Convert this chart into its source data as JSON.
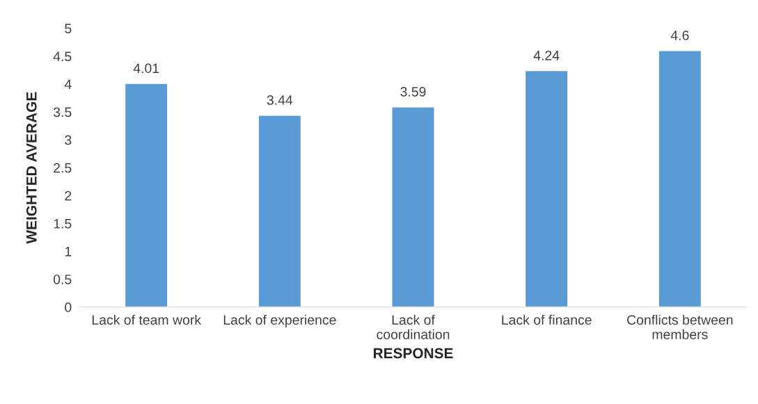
{
  "chart_data": {
    "type": "bar",
    "xlabel": "RESPONSE",
    "ylabel": "WEIGHTED AVERAGE",
    "categories": [
      "Lack of team work",
      "Lack of experience",
      "Lack of\ncoordination",
      "Lack of finance",
      "Conflicts between\nmembers"
    ],
    "values": [
      4.01,
      3.44,
      3.59,
      4.24,
      4.6
    ],
    "color": "#5b9bd5",
    "ylim": [
      0,
      5
    ],
    "yticks": [
      0,
      0.5,
      1,
      1.5,
      2,
      2.5,
      3,
      3.5,
      4,
      4.5,
      5
    ],
    "grid": false,
    "data_labels": true,
    "legend": false
  }
}
